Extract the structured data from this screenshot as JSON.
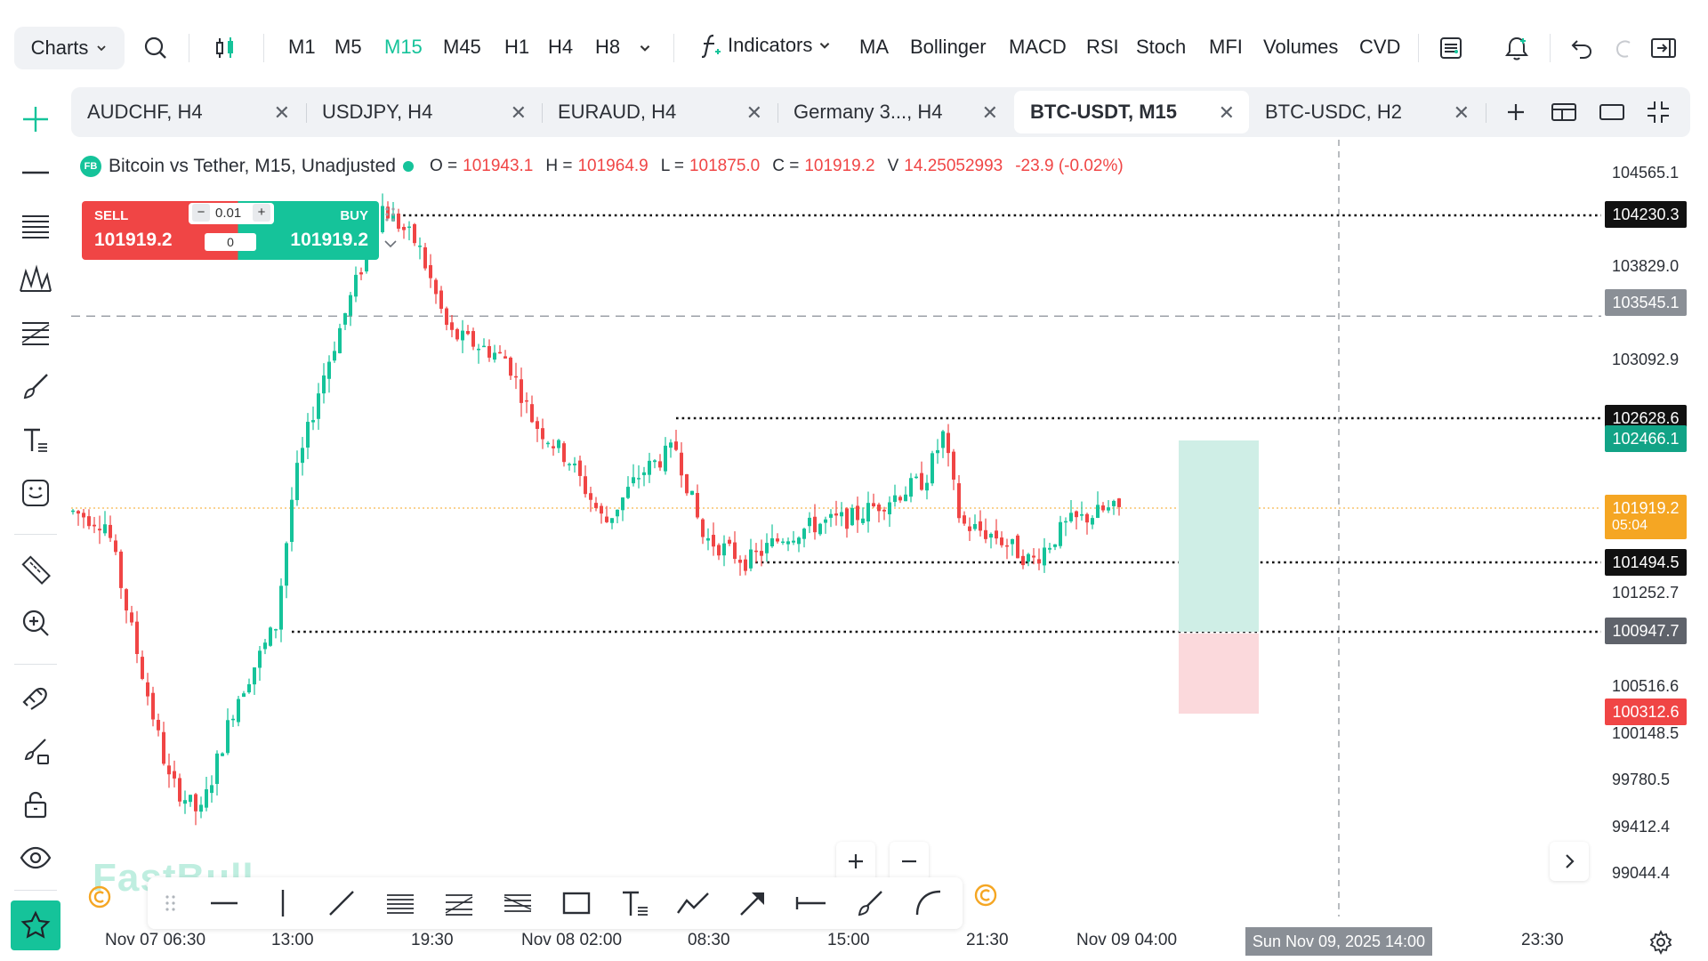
{
  "toolbar": {
    "charts_label": "Charts",
    "timeframes": [
      "M1",
      "M5",
      "M15",
      "M45",
      "H1",
      "H4",
      "H8"
    ],
    "active_timeframe": "M15",
    "indicators_label": "Indicators",
    "indicator_shortcuts": [
      "MA",
      "Bollinger",
      "MACD",
      "RSI",
      "Stoch",
      "MFI",
      "Volumes",
      "CVD"
    ]
  },
  "tabs": [
    {
      "label": "AUDCHF, H4"
    },
    {
      "label": "USDJPY, H4"
    },
    {
      "label": "EURAUD, H4"
    },
    {
      "label": "Germany 3..., H4"
    },
    {
      "label": "BTC-USDT, M15"
    },
    {
      "label": "BTC-USDC, H2"
    }
  ],
  "legend": {
    "badge": "FB",
    "title": "Bitcoin vs Tether, M15, Unadjusted",
    "o_label": "O =",
    "o_value": "101943.1",
    "h_label": "H =",
    "h_value": "101964.9",
    "l_label": "L =",
    "l_value": "101875.0",
    "c_label": "C =",
    "c_value": "101919.2",
    "v_label": "V",
    "v_value": "14.25052993",
    "change": "-23.9 (-0.02%)"
  },
  "trade": {
    "sell_label": "SELL",
    "sell_price": "101919.2",
    "buy_label": "BUY",
    "buy_price": "101919.2",
    "lot": "0.01",
    "quantity": "0"
  },
  "price_axis": {
    "ticks": [
      "104565.1",
      "103829.0",
      "103092.9",
      "101252.7",
      "100516.6",
      "100148.5",
      "99780.5",
      "99412.4",
      "99044.4"
    ],
    "labels": [
      {
        "text": "104230.3",
        "color": "#111111"
      },
      {
        "text": "103545.1",
        "color": "#8a8f96"
      },
      {
        "text": "102628.6",
        "color": "#111111"
      },
      {
        "text": "102466.1",
        "color": "#12a386"
      },
      {
        "text": "101919.2",
        "sub": "05:04",
        "color": "#f5a623"
      },
      {
        "text": "101494.5",
        "color": "#111111"
      },
      {
        "text": "100947.7",
        "color": "#5f636b"
      },
      {
        "text": "100312.6",
        "color": "#f04545"
      }
    ]
  },
  "time_axis": {
    "ticks": [
      "Nov 07 06:30",
      "13:00",
      "19:30",
      "Nov 08 02:00",
      "08:30",
      "15:00",
      "21:30",
      "Nov 09 04:00",
      "23:30"
    ],
    "crosshair_label": "Sun Nov 09, 2025 14:00"
  },
  "watermark": "FastBull",
  "colors": {
    "up": "#15c39a",
    "down": "#f04545",
    "accent": "#15c39a"
  }
}
